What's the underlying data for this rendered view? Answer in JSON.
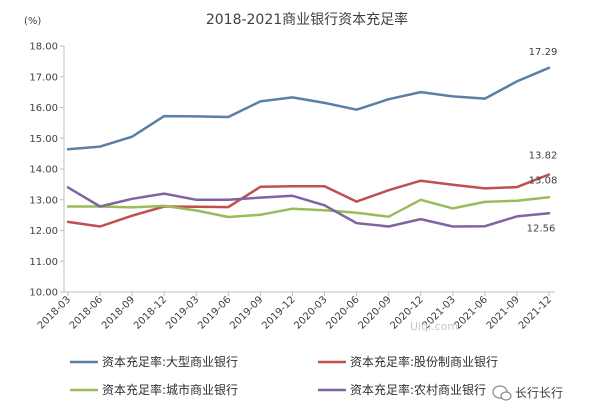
{
  "chart_data": {
    "type": "line",
    "title": "2018-2021商业银行资本充足率",
    "unit_label": "(%)",
    "categories": [
      "2018-03",
      "2018-06",
      "2018-09",
      "2018-12",
      "2019-03",
      "2019-06",
      "2019-09",
      "2019-12",
      "2020-03",
      "2020-06",
      "2020-09",
      "2020-12",
      "2021-03",
      "2021-06",
      "2021-09",
      "2021-12"
    ],
    "ylim": [
      10.0,
      18.0
    ],
    "yticks": [
      "10.00",
      "11.00",
      "12.00",
      "13.00",
      "14.00",
      "15.00",
      "16.00",
      "17.00",
      "18.00"
    ],
    "grid": false,
    "legend_position": "bottom",
    "series": [
      {
        "name": "资本充足率:大型商业银行",
        "color": "#5b7fa6",
        "values": [
          14.64,
          14.73,
          15.05,
          15.72,
          15.71,
          15.69,
          16.2,
          16.33,
          16.15,
          15.93,
          16.27,
          16.5,
          16.36,
          16.29,
          16.85,
          17.29
        ]
      },
      {
        "name": "资本充足率:股份制商业银行",
        "color": "#c0504d",
        "values": [
          12.28,
          12.13,
          12.48,
          12.78,
          12.77,
          12.76,
          13.42,
          13.44,
          13.44,
          12.94,
          13.31,
          13.62,
          13.49,
          13.37,
          13.41,
          13.82
        ]
      },
      {
        "name": "资本充足率:城市商业银行",
        "color": "#9bbb59",
        "values": [
          12.78,
          12.78,
          12.75,
          12.8,
          12.65,
          12.44,
          12.51,
          12.71,
          12.66,
          12.58,
          12.45,
          13.0,
          12.72,
          12.93,
          12.97,
          13.08
        ]
      },
      {
        "name": "资本充足率:农村商业银行",
        "color": "#8064a2",
        "values": [
          13.4,
          12.78,
          13.03,
          13.2,
          13.0,
          13.0,
          13.07,
          13.13,
          12.82,
          12.24,
          12.13,
          12.37,
          12.13,
          12.14,
          12.46,
          12.56
        ]
      }
    ],
    "annotations": [
      {
        "series": 0,
        "index": 15,
        "text": "17.29"
      },
      {
        "series": 1,
        "index": 15,
        "text": "13.82"
      },
      {
        "series": 2,
        "index": 15,
        "text": "13.08"
      },
      {
        "series": 3,
        "index": 15,
        "text": "12.56"
      }
    ]
  },
  "watermark": "Uiqi.com",
  "brand": "长行长行",
  "brand_icon": "wechat-icon"
}
